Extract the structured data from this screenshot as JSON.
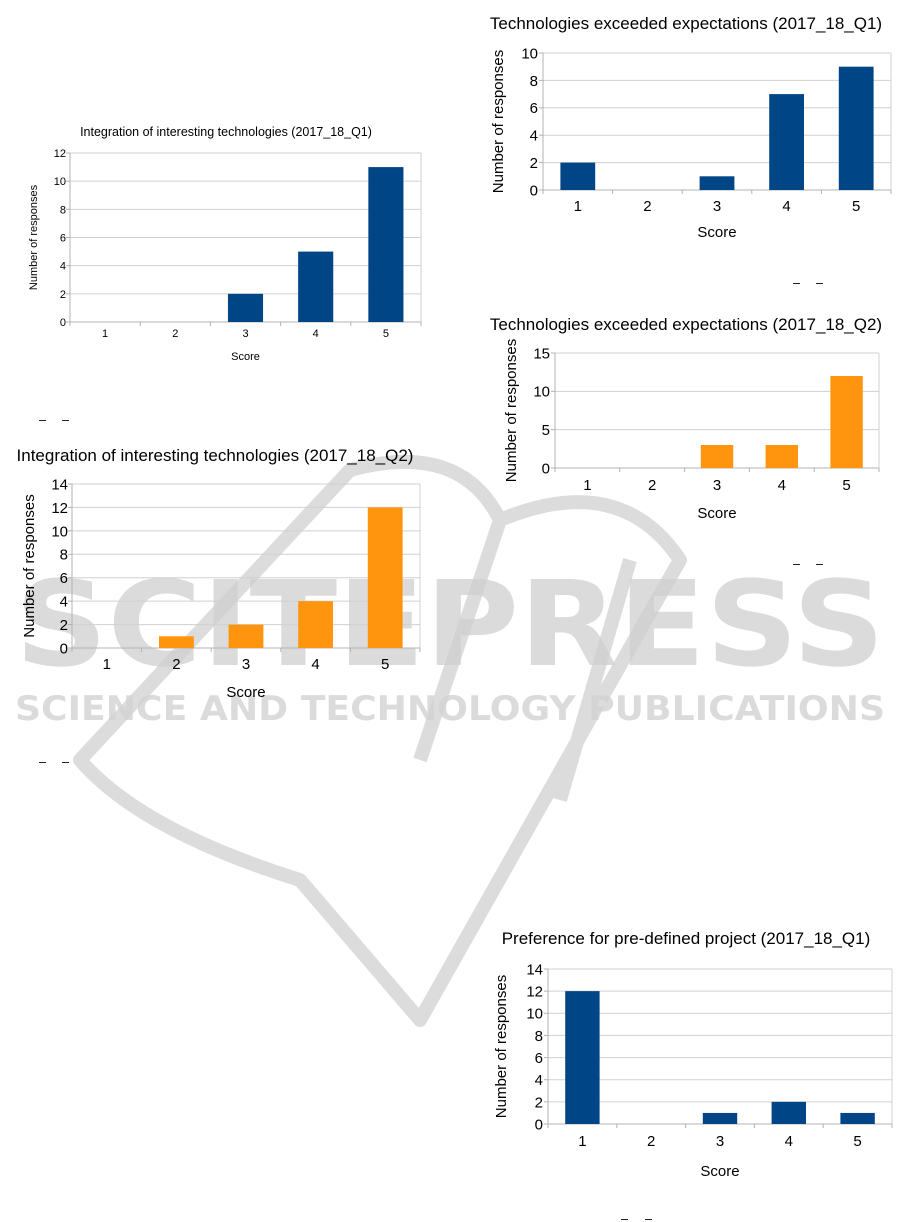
{
  "watermark": {
    "main_text": "SCITEPRESS",
    "sub_text": "SCIENCE AND TECHNOLOGY PUBLICATIONS",
    "color": "#d0d0d0"
  },
  "colors": {
    "q1_bar": "#004586",
    "q2_bar": "#ff950e",
    "grid": "#d0d0d0",
    "grid_major": "#b3b3b3",
    "axis": "#b3b3b3",
    "text": "#000000"
  },
  "chart_data": [
    {
      "id": "integration_q1",
      "type": "bar",
      "title": "Integration of interesting technologies (2017_18_Q1)",
      "xlabel": "Score",
      "ylabel": "Number of responses",
      "categories": [
        "1",
        "2",
        "3",
        "4",
        "5"
      ],
      "values": [
        0,
        0,
        2,
        5,
        11
      ],
      "ylim": [
        0,
        12
      ],
      "yticks": [
        0,
        2,
        4,
        6,
        8,
        10,
        12
      ],
      "grid": true,
      "series_color": "q1_bar"
    },
    {
      "id": "integration_q2",
      "type": "bar",
      "title": "Integration of interesting technologies (2017_18_Q2)",
      "xlabel": "Score",
      "ylabel": "Number of responses",
      "categories": [
        "1",
        "2",
        "3",
        "4",
        "5"
      ],
      "values": [
        0,
        1,
        2,
        4,
        12
      ],
      "ylim": [
        0,
        14
      ],
      "yticks": [
        0,
        2,
        4,
        6,
        8,
        10,
        12,
        14
      ],
      "grid": true,
      "series_color": "q2_bar"
    },
    {
      "id": "exceeded_q1",
      "type": "bar",
      "title": "Technologies exceeded expectations (2017_18_Q1)",
      "xlabel": "Score",
      "ylabel": "Number of responses",
      "categories": [
        "1",
        "2",
        "3",
        "4",
        "5"
      ],
      "values": [
        2,
        0,
        1,
        7,
        9
      ],
      "ylim": [
        0,
        10
      ],
      "yticks": [
        0,
        2,
        4,
        6,
        8,
        10
      ],
      "grid": true,
      "series_color": "q1_bar"
    },
    {
      "id": "exceeded_q2",
      "type": "bar",
      "title": "Technologies exceeded expectations (2017_18_Q2)",
      "xlabel": "Score",
      "ylabel": "Number of responses",
      "categories": [
        "1",
        "2",
        "3",
        "4",
        "5"
      ],
      "values": [
        0,
        0,
        3,
        3,
        12
      ],
      "ylim": [
        0,
        15
      ],
      "yticks": [
        0,
        5,
        10,
        15
      ],
      "grid": true,
      "series_color": "q2_bar"
    },
    {
      "id": "predefined_q1",
      "type": "bar",
      "title": "Preference for pre-defined project (2017_18_Q1)",
      "xlabel": "Score",
      "ylabel": "Number of responses",
      "categories": [
        "1",
        "2",
        "3",
        "4",
        "5"
      ],
      "values": [
        12,
        0,
        1,
        2,
        1
      ],
      "ylim": [
        0,
        14
      ],
      "yticks": [
        0,
        2,
        4,
        6,
        8,
        10,
        12,
        14
      ],
      "grid": true,
      "series_color": "q1_bar"
    }
  ]
}
